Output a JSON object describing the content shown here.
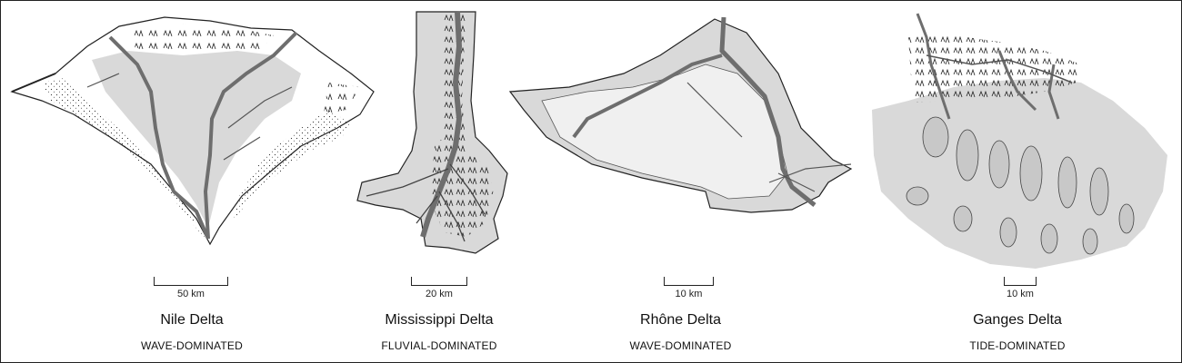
{
  "deltas": [
    {
      "name": "Nile Delta",
      "type": "WAVE-DOMINATED",
      "scale": "50 km",
      "color_land": "#d9d9d9",
      "color_channel": "#6e6e6e"
    },
    {
      "name": "Mississippi Delta",
      "type": "FLUVIAL-DOMINATED",
      "scale": "20 km",
      "color_land": "#d9d9d9",
      "color_channel": "#6e6e6e"
    },
    {
      "name": "Rhône Delta",
      "type": "WAVE-DOMINATED",
      "scale": "10 km",
      "color_land": "#d9d9d9",
      "color_channel": "#6e6e6e"
    },
    {
      "name": "Ganges Delta",
      "type": "TIDE-DOMINATED",
      "scale": "10 km",
      "color_land": "#d9d9d9",
      "color_channel": "#6e6e6e"
    }
  ]
}
